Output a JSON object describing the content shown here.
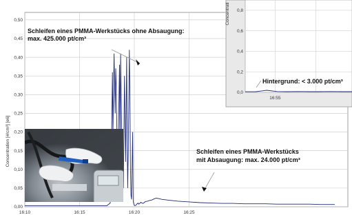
{
  "chart_data": [
    {
      "type": "line",
      "role": "main",
      "ylabel": "Concentration [#/cm³] [e6]",
      "x_ticks": [
        "16:10",
        "16:15",
        "16:20",
        "16:25"
      ],
      "y_ticks": [
        "0,00",
        "0,05",
        "0,10",
        "0,15",
        "0,20",
        "0,25",
        "0,30",
        "0,35",
        "0,40",
        "0,45",
        "0,50"
      ],
      "ylim": [
        0,
        0.52
      ],
      "grid": true,
      "series": [
        {
          "color": "#1f2a7a",
          "x_minutes_after_1610": [
            0,
            7.5,
            7.8,
            7.9,
            8.0,
            8.05,
            8.15,
            8.25,
            8.3,
            8.35,
            8.45,
            8.5,
            8.55,
            8.65,
            8.7,
            8.75,
            8.8,
            8.9,
            9.0,
            9.1,
            9.2,
            9.3,
            9.35,
            9.4,
            9.45,
            9.55,
            9.6,
            9.65,
            9.7,
            9.75,
            9.85,
            9.9,
            9.95,
            10.0,
            10.05,
            10.15,
            10.2,
            10.25,
            10.35,
            10.4,
            10.5,
            10.6,
            10.7,
            10.8,
            10.9,
            11,
            11.2,
            11.4,
            11.6,
            11.8,
            12,
            12.2,
            12.5,
            13,
            14,
            15,
            16,
            17,
            18,
            19,
            20,
            21,
            22,
            23,
            24,
            25,
            26,
            27,
            28.3
          ],
          "values": [
            0.003,
            0.003,
            0.01,
            0.12,
            0.36,
            0.2,
            0.41,
            0.25,
            0.37,
            0.32,
            0.12,
            0.05,
            0.2,
            0.38,
            0.15,
            0.41,
            0.3,
            0.1,
            0.05,
            0.35,
            0.12,
            0.4,
            0.18,
            0.05,
            0.15,
            0.42,
            0.3,
            0.1,
            0.03,
            0.02,
            0.2,
            0.015,
            0.008,
            0.004,
            0.003,
            0.004,
            0.006,
            0.008,
            0.01,
            0.007,
            0.009,
            0.012,
            0.01,
            0.009,
            0.011,
            0.014,
            0.015,
            0.017,
            0.018,
            0.021,
            0.023,
            0.022,
            0.02,
            0.018,
            0.015,
            0.013,
            0.011,
            0.01,
            0.009,
            0.009,
            0.008,
            0.008,
            0.008,
            0.007,
            0.007,
            0.007,
            0.007,
            0.006,
            0.006
          ]
        }
      ],
      "annotations": [
        "Schleifen eines PMMA-Werkstücks ohne Absaugung:",
        "max. 425.000 pt/cm³",
        "Schleifen eines PMMA-Werkstücks",
        "mit Absaugung: max. 24.000 pt/cm³"
      ]
    },
    {
      "type": "line",
      "role": "inset",
      "ylabel": "Concentrati",
      "x_ticks": [
        "16:55"
      ],
      "y_ticks": [
        "0,0",
        "0,2",
        "0,4",
        "0,6",
        "0,8"
      ],
      "ylim": [
        0,
        0.9
      ],
      "grid": true,
      "series": [
        {
          "color": "#1f2a7a",
          "x": [
            0,
            0.1,
            0.2,
            0.3,
            0.4,
            0.5,
            0.6,
            0.7,
            0.8,
            0.9,
            1.0
          ],
          "values": [
            0.006,
            0.007,
            0.02,
            0.008,
            0.007,
            0.008,
            0.007,
            0.007,
            0.008,
            0.007,
            0.007
          ]
        }
      ],
      "annotations": [
        "Hintergrund: < 3.000 pt/cm³"
      ]
    }
  ],
  "photo": {
    "description_icon": "photo-hand-grinding"
  }
}
